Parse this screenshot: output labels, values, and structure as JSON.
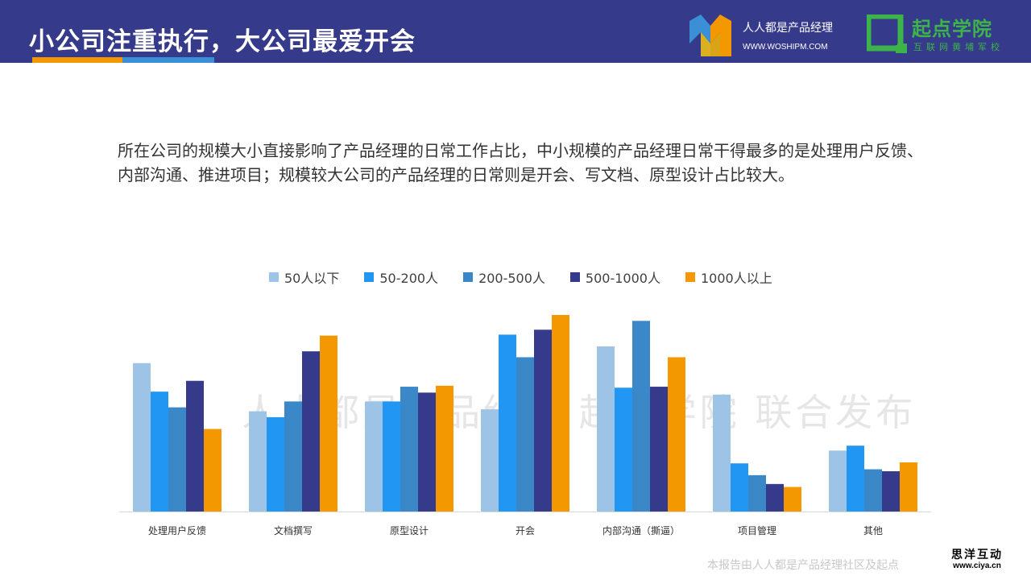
{
  "header": {
    "title": "小公司注重执行，大公司最爱开会",
    "brand_name": "人人都是产品经理",
    "brand_url": "WWW.WOSHIPM.COM",
    "school_name": "起点学院",
    "school_sub": "互联网黄埔军校"
  },
  "body_text": "所在公司的规模大小直接影响了产品经理的日常工作占比，中小规模的产品经理日常干得最多的是处理用户反馈、内部沟通、推进项目；规模较大公司的产品经理的日常则是开会、写文档、原型设计占比较大。",
  "watermark": "人人都是产品经理 起点学院 联合发布",
  "footer_note": "本报告由人人都是产品经理社区及起点",
  "stamp": {
    "cn": "思洋互动",
    "url": "www.ciya.cn"
  },
  "colors": {
    "header_bg": "#363a8a",
    "accent_orange": "#f39800",
    "accent_blue": "#3a8fd6",
    "logo_green": "#3cb44a"
  },
  "chart_data": {
    "type": "bar",
    "title": "",
    "xlabel": "",
    "ylabel": "",
    "ylim": [
      0,
      100
    ],
    "grid": false,
    "legend_position": "top-center",
    "categories": [
      "处理用户反馈",
      "文档撰写",
      "原型设计",
      "开会",
      "内部沟通（撕逼）",
      "项目管理",
      "其他"
    ],
    "series": [
      {
        "name": "50人以下",
        "color": "#9dc3e6",
        "values": [
          75.5,
          51,
          56,
          52,
          84,
          59.5,
          31
        ]
      },
      {
        "name": "50-200人",
        "color": "#2196f3",
        "values": [
          61,
          48,
          56,
          90,
          63,
          24.5,
          33.5
        ]
      },
      {
        "name": "200-500人",
        "color": "#3a88c8",
        "values": [
          53,
          56,
          63.5,
          78.5,
          97,
          18.5,
          21.5
        ]
      },
      {
        "name": "500-1000人",
        "color": "#363a8a",
        "values": [
          66.5,
          81.5,
          60.5,
          92.5,
          63.5,
          14,
          20.5
        ]
      },
      {
        "name": "1000人以上",
        "color": "#f39800",
        "values": [
          42,
          89.5,
          64,
          100,
          78.5,
          12.5,
          25
        ]
      }
    ]
  }
}
